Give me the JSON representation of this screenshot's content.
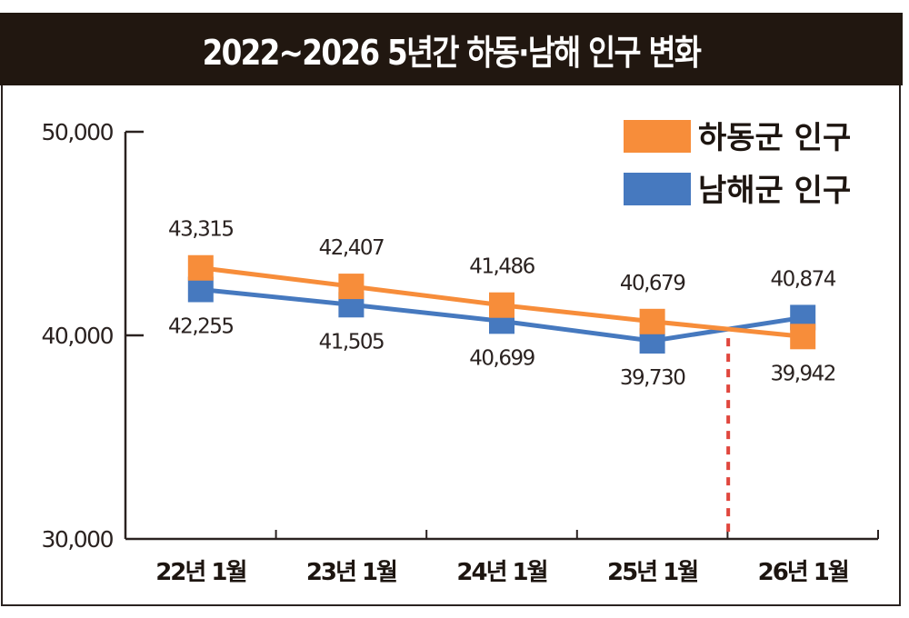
{
  "chart_data": {
    "type": "line",
    "title": "2022~2026 5년간 하동·남해 인구 변화",
    "xlabel": "",
    "ylabel": "",
    "categories": [
      "22년 1월",
      "23년 1월",
      "24년 1월",
      "25년 1월",
      "26년 1월"
    ],
    "ylim": [
      30000,
      50000
    ],
    "yticks": [
      50000,
      40000,
      30000
    ],
    "ytick_labels": [
      "50,000",
      "40,000",
      "30,000"
    ],
    "grid": false,
    "legend_position": "top-right",
    "series": [
      {
        "name": "하동군 인구",
        "color": "#f78d3a",
        "values": [
          43315,
          42407,
          41486,
          40679,
          39942
        ],
        "labels": [
          "43,315",
          "42,407",
          "41,486",
          "40,679",
          "39,942"
        ]
      },
      {
        "name": "남해군 인구",
        "color": "#4679bf",
        "values": [
          42255,
          41505,
          40699,
          39730,
          40874
        ],
        "labels": [
          "42,255",
          "41,505",
          "40,699",
          "39,730",
          "40,874"
        ]
      }
    ],
    "annotations": [
      {
        "type": "vertical-dashed-line",
        "color": "#e0463d",
        "description": "crossover between 25년 1월 and 26년 1월"
      }
    ]
  }
}
